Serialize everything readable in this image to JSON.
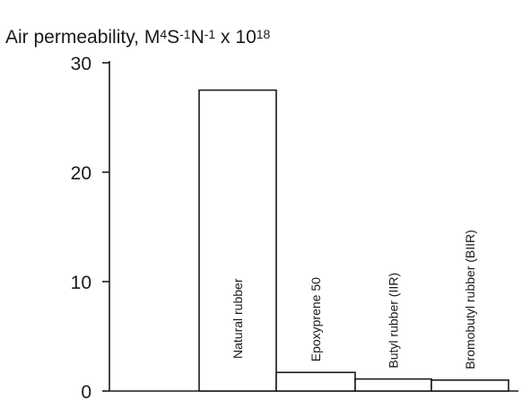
{
  "chart_data": {
    "type": "bar",
    "title": {
      "base": "Air permeability, M",
      "parts": [
        {
          "text": "4",
          "sup": true
        },
        {
          "text": "S",
          "sup": false
        },
        {
          "text": "-1",
          "sup": true
        },
        {
          "text": "N",
          "sup": false
        },
        {
          "text": "-1",
          "sup": true
        },
        {
          "text": " x 10",
          "sup": false
        },
        {
          "text": "18",
          "sup": true
        }
      ]
    },
    "xlabel": "",
    "ylabel": "",
    "ylim": [
      0,
      30
    ],
    "yticks": [
      0,
      10,
      20,
      30
    ],
    "grid": false,
    "categories": [
      "",
      "Natural rubber",
      "Epoxyprene 50",
      "Butyl rubber (IIR)",
      "Bromobutyl rubber (BIIR)"
    ],
    "values": [
      0,
      27.5,
      1.7,
      1.1,
      1.0
    ],
    "colors": {
      "ink": "#1a1a1a",
      "bar_fill": "#ffffff",
      "background": "#ffffff"
    }
  }
}
